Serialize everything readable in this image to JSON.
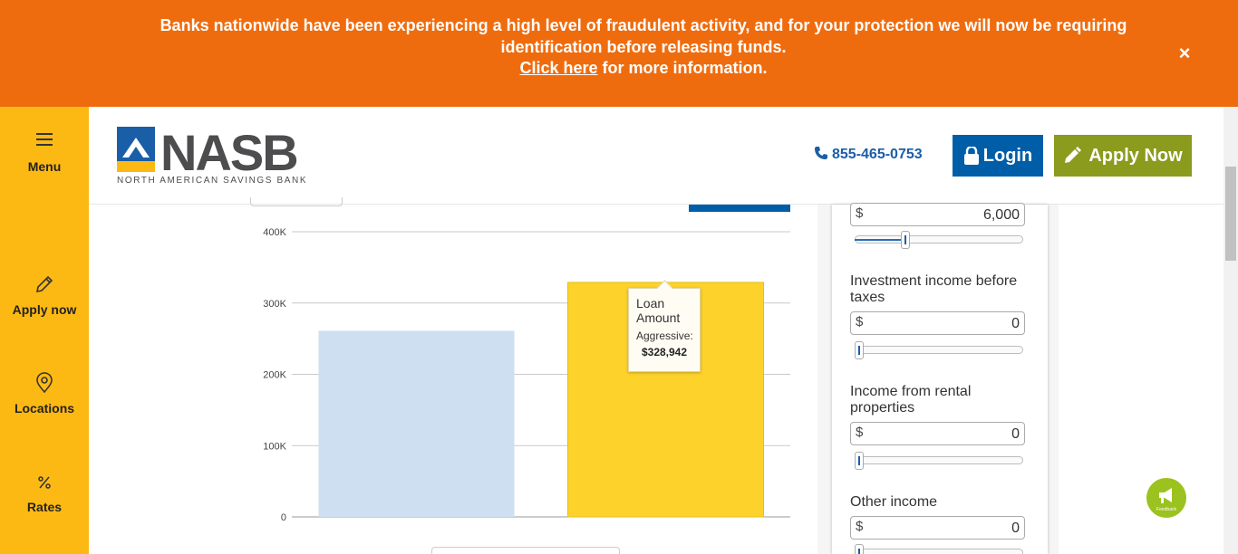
{
  "banner": {
    "line1": "Banks nationwide have been experiencing a high level of fraudulent activity, and for your protection we will now be requiring identification before releasing funds.",
    "link_text": "Click here",
    "link_suffix": " for more information.",
    "close_symbol": "×"
  },
  "sidenav": {
    "items": [
      {
        "label": "Menu",
        "icon": "hamburger-icon"
      },
      {
        "label": "Apply now",
        "icon": "pencil-icon"
      },
      {
        "label": "Locations",
        "icon": "map-pin-icon"
      },
      {
        "label": "Rates",
        "icon": "percent-icon"
      }
    ],
    "color": "#fdb913"
  },
  "header": {
    "logo_text": "NASB",
    "logo_subtitle": "NORTH AMERICAN SAVINGS BANK",
    "phone": "855-465-0753",
    "login_label": "Login",
    "apply_label": "Apply Now",
    "login_color": "#005da8",
    "apply_color": "#8a9b1d"
  },
  "chart_data": {
    "type": "bar",
    "categories": [
      "",
      ""
    ],
    "values": [
      261000,
      328942
    ],
    "colors": [
      "#cddff0",
      "#fdd22a"
    ],
    "ytick_labels": [
      "0",
      "100K",
      "200K",
      "300K",
      "400K"
    ],
    "ylim": [
      0,
      400000
    ],
    "grid": true,
    "tooltip": {
      "title": "Loan Amount",
      "series": "Aggressive:",
      "value": "$328,942"
    }
  },
  "panel": {
    "fields": [
      {
        "label": "",
        "currency": "$",
        "value": "6,000",
        "slider_fraction": 0.29
      },
      {
        "label": "Investment income before taxes",
        "currency": "$",
        "value": "0",
        "slider_fraction": 0
      },
      {
        "label": "Income from rental properties",
        "currency": "$",
        "value": "0",
        "slider_fraction": 0
      },
      {
        "label": "Other income",
        "currency": "$",
        "value": "0",
        "slider_fraction": 0
      }
    ]
  },
  "feedback": {
    "label": "Feedback",
    "color": "#9bc21f"
  }
}
